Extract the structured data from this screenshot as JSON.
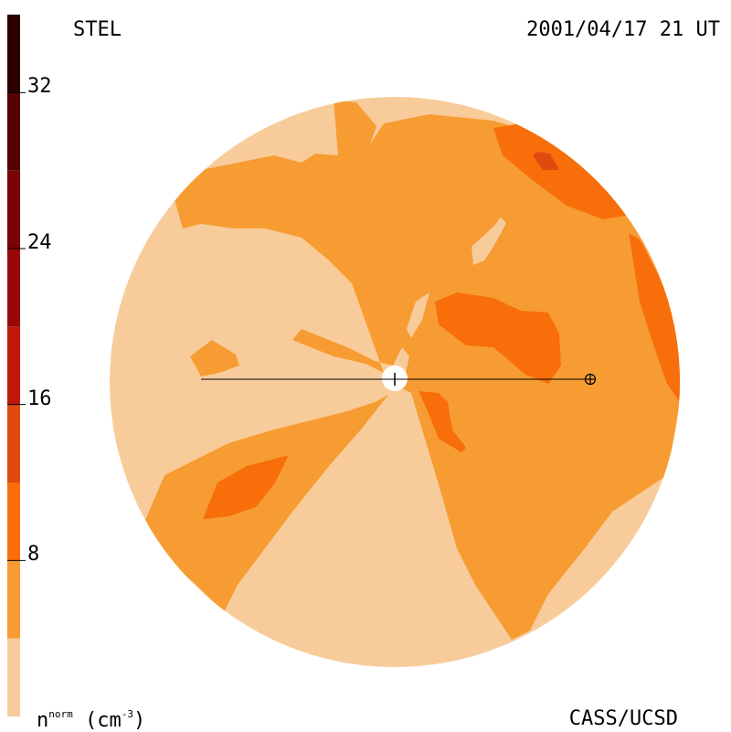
{
  "header": {
    "source": "STEL",
    "datetime": "2001/04/17 21 UT"
  },
  "footer": {
    "credit": "CASS/UCSD",
    "units_base": "n",
    "units_sup": "norm",
    "units_rest": "(cm",
    "units_exp": "-3",
    "units_close": ")"
  },
  "colorbar": {
    "ticks": [
      "32",
      "24",
      "16",
      "8"
    ],
    "tick_values": [
      32,
      24,
      16,
      8
    ],
    "range": [
      0,
      36
    ],
    "bands": [
      {
        "from": 0,
        "to": 4,
        "color": "#f8cc9a"
      },
      {
        "from": 4,
        "to": 8,
        "color": "#f79c33"
      },
      {
        "from": 8,
        "to": 12,
        "color": "#f76e0a"
      },
      {
        "from": 12,
        "to": 16,
        "color": "#e04a10"
      },
      {
        "from": 16,
        "to": 20,
        "color": "#c0180a"
      },
      {
        "from": 20,
        "to": 24,
        "color": "#980808"
      },
      {
        "from": 24,
        "to": 28,
        "color": "#780404"
      },
      {
        "from": 28,
        "to": 32,
        "color": "#540202"
      },
      {
        "from": 32,
        "to": 36,
        "color": "#2a0000"
      }
    ]
  },
  "colors": {
    "level1": "#f8cc9a",
    "level2": "#f79c33",
    "level3": "#f76e0a",
    "level4": "#e04a10",
    "sun": "#ffffff",
    "line": "#000000"
  }
}
